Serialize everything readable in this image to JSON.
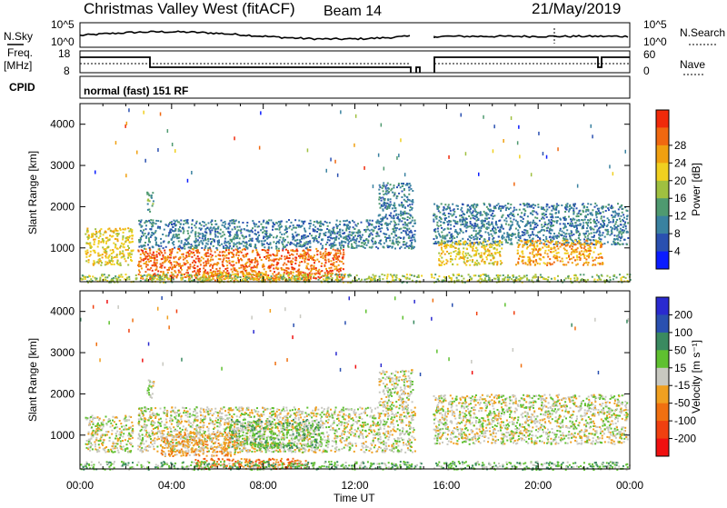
{
  "header": {
    "station": "Christmas Valley West (fitACF)",
    "beam": "Beam 14",
    "date": "21/May/2019"
  },
  "labels": {
    "nsky": "N.Sky",
    "nsearch": "N.Search",
    "freq_line1": "Freq.",
    "freq_line2": "[MHz]",
    "nave": "Nave",
    "cpid": "CPID",
    "cpid_value": "normal (fast) 151 RF",
    "noise_ticks": [
      "10^5",
      "10^0"
    ],
    "noise_ticks_right": [
      "10^5",
      "10^0"
    ],
    "freq_ticks": [
      "18",
      "8"
    ],
    "nave_ticks": [
      "60",
      "0"
    ]
  },
  "colors": {
    "power": [
      "#0a1cff",
      "#2a50b0",
      "#3a82a0",
      "#4f9a70",
      "#9fc040",
      "#f0d020",
      "#f0a010",
      "#f06810",
      "#f02a0a"
    ],
    "velocity": [
      "#2a2ad0",
      "#2a50b0",
      "#3a8a60",
      "#5fc030",
      "#c8c8c0",
      "#f0a020",
      "#f07010",
      "#f04010",
      "#f01010"
    ]
  },
  "chart_data": [
    {
      "type": "heatmap",
      "name_panel": "power",
      "ylabel": "Slant Range [km]",
      "xlabel": "Time UT",
      "x_ticks": [
        "00:00",
        "04:00",
        "08:00",
        "12:00",
        "16:00",
        "20:00",
        "00:00"
      ],
      "x_range_hours": [
        0,
        24
      ],
      "y_ticks": [
        1000,
        2000,
        3000,
        4000
      ],
      "y_range_km": [
        180,
        4500
      ],
      "colorbar_label": "Power [dB]",
      "colorbar_ticks": [
        4,
        8,
        12,
        16,
        20,
        24,
        28
      ],
      "data_gap_hours": [
        14.9,
        15.3
      ],
      "blobs": [
        {
          "t0": 0.2,
          "t1": 2.3,
          "r0": 600,
          "r1": 1500,
          "level": 5
        },
        {
          "t0": 2.9,
          "t1": 3.2,
          "r0": 1900,
          "r1": 2400,
          "level": 3
        },
        {
          "t0": 2.5,
          "t1": 11.5,
          "r0": 250,
          "r1": 1000,
          "level": 7
        },
        {
          "t0": 5.0,
          "t1": 10.0,
          "r0": 200,
          "r1": 450,
          "level": 6
        },
        {
          "t0": 2.5,
          "t1": 14.6,
          "r0": 1000,
          "r1": 1700,
          "level": 2
        },
        {
          "t0": 13.0,
          "t1": 14.5,
          "r0": 1700,
          "r1": 2600,
          "level": 2
        },
        {
          "t0": 15.4,
          "t1": 23.9,
          "r0": 1100,
          "r1": 2100,
          "level": 2
        },
        {
          "t0": 15.6,
          "t1": 18.4,
          "r0": 600,
          "r1": 1200,
          "level": 5
        },
        {
          "t0": 19.0,
          "t1": 22.8,
          "r0": 600,
          "r1": 1200,
          "level": 6
        },
        {
          "t0": 0.0,
          "t1": 24.0,
          "r0": 180,
          "r1": 380,
          "level": 4
        }
      ]
    },
    {
      "type": "heatmap",
      "name_panel": "velocity",
      "ylabel": "Slant Range [km]",
      "xlabel": "Time UT",
      "x_ticks": [
        "00:00",
        "04:00",
        "08:00",
        "12:00",
        "16:00",
        "20:00",
        "00:00"
      ],
      "x_range_hours": [
        0,
        24
      ],
      "y_ticks": [
        1000,
        2000,
        3000,
        4000
      ],
      "y_range_km": [
        180,
        4500
      ],
      "colorbar_label": "Velocity [m s⁻¹]",
      "colorbar_ticks": [
        200,
        100,
        50,
        15,
        -15,
        -50,
        -100,
        -200
      ],
      "data_gap_hours": [
        14.9,
        15.3
      ],
      "blobs": [
        {
          "t0": 0.2,
          "t1": 2.3,
          "r0": 600,
          "r1": 1500,
          "level": 4
        },
        {
          "t0": 2.9,
          "t1": 3.2,
          "r0": 1900,
          "r1": 2400,
          "level": 4
        },
        {
          "t0": 2.5,
          "t1": 14.6,
          "r0": 600,
          "r1": 1700,
          "level": 4
        },
        {
          "t0": 5.0,
          "t1": 10.0,
          "r0": 200,
          "r1": 450,
          "level": 6
        },
        {
          "t0": 6.5,
          "t1": 10.5,
          "r0": 700,
          "r1": 1400,
          "level": 3
        },
        {
          "t0": 3.5,
          "t1": 7.0,
          "r0": 500,
          "r1": 1100,
          "level": 5
        },
        {
          "t0": 13.0,
          "t1": 14.5,
          "r0": 1700,
          "r1": 2600,
          "level": 4
        },
        {
          "t0": 15.4,
          "t1": 23.9,
          "r0": 800,
          "r1": 2000,
          "level": 4
        },
        {
          "t0": 0.0,
          "t1": 24.0,
          "r0": 180,
          "r1": 380,
          "level": 3
        }
      ]
    }
  ]
}
